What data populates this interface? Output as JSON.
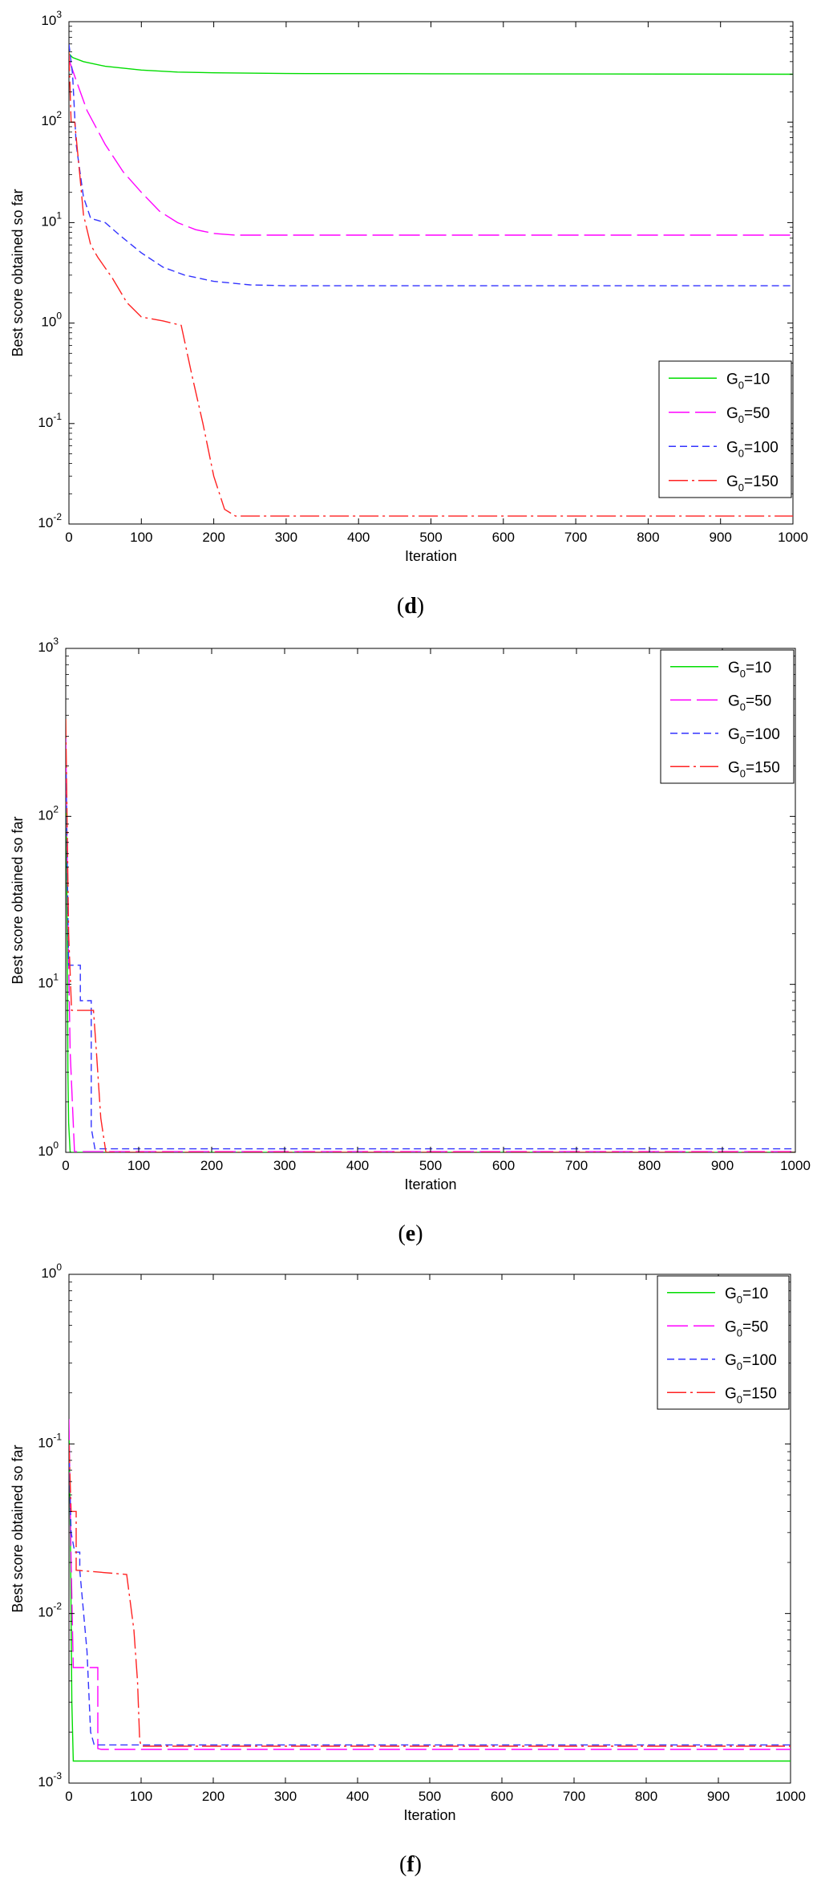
{
  "chart_data": [
    {
      "type": "line",
      "panel_label": "d",
      "xlabel": "Iteration",
      "ylabel": "Best score obtained so far",
      "xlim": [
        0,
        1000
      ],
      "ylim": [
        0.01,
        1000
      ],
      "yscale": "log",
      "x_ticks": [
        "0",
        "100",
        "200",
        "300",
        "400",
        "500",
        "600",
        "700",
        "800",
        "900",
        "1000"
      ],
      "y_ticks": [
        {
          "base": "10",
          "exp": "-2"
        },
        {
          "base": "10",
          "exp": "-1"
        },
        {
          "base": "10",
          "exp": "0"
        },
        {
          "base": "10",
          "exp": "1"
        },
        {
          "base": "10",
          "exp": "2"
        },
        {
          "base": "10",
          "exp": "3"
        }
      ],
      "grid": false,
      "legend_position": "bottom-right",
      "series": [
        {
          "name": "G0=10",
          "legend_main": "G",
          "legend_sub": "0",
          "legend_rest": "=10",
          "color": "#00dd00",
          "dash": "",
          "x": [
            0,
            5,
            20,
            50,
            100,
            150,
            200,
            300,
            500,
            1000
          ],
          "y": [
            480,
            440,
            400,
            360,
            330,
            315,
            310,
            305,
            303,
            300
          ]
        },
        {
          "name": "G0=50",
          "legend_main": "G",
          "legend_sub": "0",
          "legend_rest": "=50",
          "color": "#ff00ff",
          "dash": "26 7",
          "x": [
            0,
            10,
            25,
            50,
            75,
            100,
            125,
            150,
            175,
            200,
            230,
            260,
            300,
            1000
          ],
          "y": [
            420,
            260,
            130,
            60,
            32,
            20,
            13,
            10,
            8.5,
            7.8,
            7.5,
            7.5,
            7.5,
            7.5
          ]
        },
        {
          "name": "G0=100",
          "legend_main": "G",
          "legend_sub": "0",
          "legend_rest": "=100",
          "color": "#3333ff",
          "dash": "9 5",
          "x": [
            0,
            5,
            10,
            20,
            30,
            40,
            50,
            70,
            100,
            130,
            160,
            200,
            250,
            300,
            1000
          ],
          "y": [
            600,
            300,
            60,
            18,
            11,
            10.5,
            10,
            7.5,
            5,
            3.6,
            3,
            2.6,
            2.4,
            2.35,
            2.35
          ]
        },
        {
          "name": "G0=150",
          "legend_main": "G",
          "legend_sub": "0",
          "legend_rest": "=150",
          "color": "#ff2222",
          "dash": "24 5 3 5",
          "x": [
            0,
            3,
            8,
            15,
            20,
            30,
            40,
            60,
            80,
            100,
            130,
            155,
            170,
            185,
            200,
            215,
            230,
            250,
            300,
            1000
          ],
          "y": [
            500,
            100,
            100,
            30,
            12,
            6,
            4.5,
            2.8,
            1.6,
            1.15,
            1.05,
            0.95,
            0.3,
            0.1,
            0.03,
            0.014,
            0.012,
            0.012,
            0.012,
            0.012
          ]
        }
      ]
    },
    {
      "type": "line",
      "panel_label": "e",
      "xlabel": "Iteration",
      "ylabel": "Best score obtained so far",
      "xlim": [
        0,
        1000
      ],
      "ylim": [
        1,
        1000
      ],
      "yscale": "log",
      "x_ticks": [
        "0",
        "100",
        "200",
        "300",
        "400",
        "500",
        "600",
        "700",
        "800",
        "900",
        "1000"
      ],
      "y_ticks": [
        {
          "base": "10",
          "exp": "0"
        },
        {
          "base": "10",
          "exp": "1"
        },
        {
          "base": "10",
          "exp": "2"
        },
        {
          "base": "10",
          "exp": "3"
        }
      ],
      "grid": false,
      "legend_position": "top-right",
      "series": [
        {
          "name": "G0=10",
          "legend_main": "G",
          "legend_sub": "0",
          "legend_rest": "=10",
          "color": "#00dd00",
          "dash": "",
          "x": [
            0,
            2,
            3,
            4,
            6,
            1000
          ],
          "y": [
            380,
            20,
            3,
            1.5,
            1.0,
            1.0
          ]
        },
        {
          "name": "G0=50",
          "legend_main": "G",
          "legend_sub": "0",
          "legend_rest": "=50",
          "color": "#ff00ff",
          "dash": "26 7",
          "x": [
            0,
            3,
            6,
            12,
            1000
          ],
          "y": [
            300,
            25,
            4,
            1.01,
            1.01
          ]
        },
        {
          "name": "G0=100",
          "legend_main": "G",
          "legend_sub": "0",
          "legend_rest": "=100",
          "color": "#3333ff",
          "dash": "9 5",
          "x": [
            0,
            4,
            8,
            20,
            20,
            35,
            35,
            40,
            1000
          ],
          "y": [
            250,
            13,
            13,
            13,
            8,
            8,
            1.4,
            1.05,
            1.05
          ]
        },
        {
          "name": "G0=150",
          "legend_main": "G",
          "legend_sub": "0",
          "legend_rest": "=150",
          "color": "#ff2222",
          "dash": "24 5 3 5",
          "x": [
            0,
            4,
            8,
            10,
            38,
            42,
            48,
            55,
            1000
          ],
          "y": [
            380,
            20,
            7,
            7,
            7,
            4,
            1.6,
            1.0,
            1.0
          ]
        }
      ]
    },
    {
      "type": "line",
      "panel_label": "f",
      "xlabel": "Iteration",
      "ylabel": "Best score obtained so far",
      "xlim": [
        0,
        1000
      ],
      "ylim": [
        0.001,
        1
      ],
      "yscale": "log",
      "x_ticks": [
        "0",
        "100",
        "200",
        "300",
        "400",
        "500",
        "600",
        "700",
        "800",
        "900",
        "1000"
      ],
      "y_ticks": [
        {
          "base": "10",
          "exp": "-3"
        },
        {
          "base": "10",
          "exp": "-2"
        },
        {
          "base": "10",
          "exp": "-1"
        },
        {
          "base": "10",
          "exp": "0"
        }
      ],
      "grid": false,
      "legend_position": "top-right",
      "series": [
        {
          "name": "G0=10",
          "legend_main": "G",
          "legend_sub": "0",
          "legend_rest": "=10",
          "color": "#00dd00",
          "dash": "",
          "x": [
            0,
            2,
            4,
            6,
            1000
          ],
          "y": [
            0.12,
            0.03,
            0.003,
            0.00135,
            0.00135
          ]
        },
        {
          "name": "G0=50",
          "legend_main": "G",
          "legend_sub": "0",
          "legend_rest": "=50",
          "color": "#ff00ff",
          "dash": "26 7",
          "x": [
            0,
            3,
            6,
            40,
            40,
            45,
            1000
          ],
          "y": [
            0.14,
            0.02,
            0.0048,
            0.0048,
            0.0016,
            0.00158,
            0.00158
          ]
        },
        {
          "name": "G0=100",
          "legend_main": "G",
          "legend_sub": "0",
          "legend_rest": "=100",
          "color": "#3333ff",
          "dash": "9 5",
          "x": [
            0,
            3,
            8,
            15,
            15,
            25,
            30,
            35,
            1000
          ],
          "y": [
            0.09,
            0.03,
            0.023,
            0.023,
            0.018,
            0.006,
            0.002,
            0.00168,
            0.00168
          ]
        },
        {
          "name": "G0=150",
          "legend_main": "G",
          "legend_sub": "0",
          "legend_rest": "=150",
          "color": "#ff2222",
          "dash": "24 5 3 5",
          "x": [
            0,
            3,
            10,
            10,
            80,
            90,
            95,
            98,
            100,
            1000
          ],
          "y": [
            0.1,
            0.04,
            0.04,
            0.018,
            0.017,
            0.008,
            0.004,
            0.0018,
            0.00165,
            0.00165
          ]
        }
      ]
    }
  ]
}
